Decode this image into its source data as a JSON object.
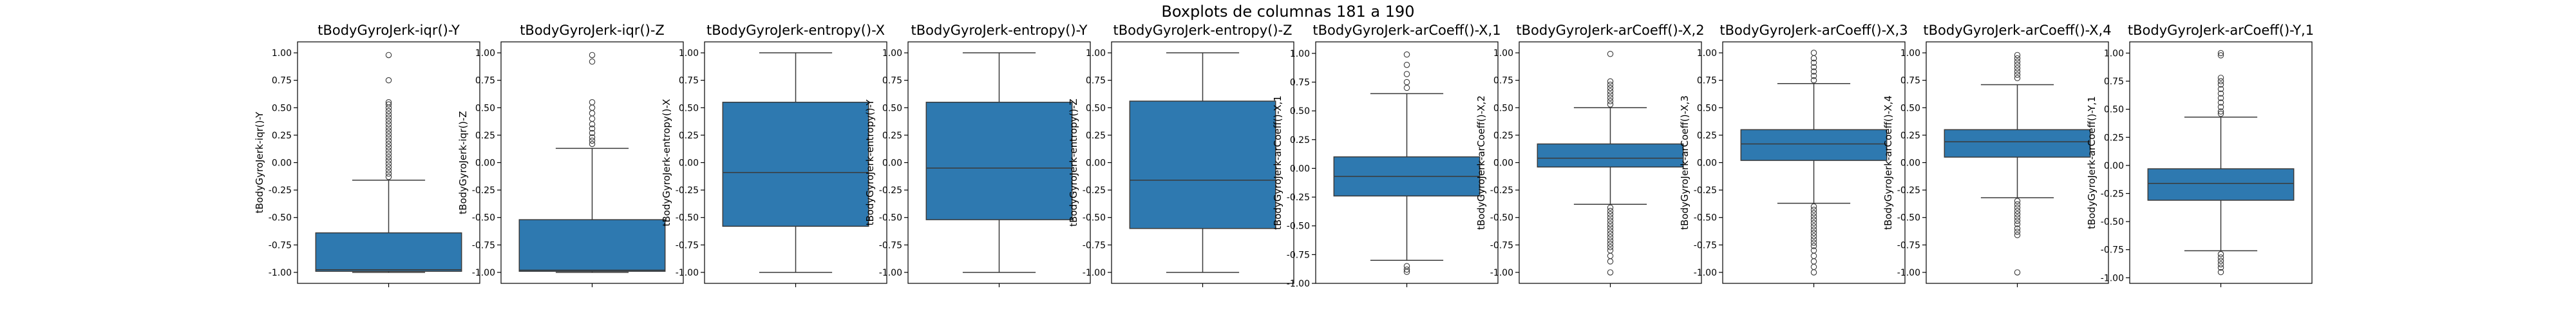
{
  "figure_title": "Boxplots de columnas 181 a 190",
  "colors": {
    "box": "#2e79b0",
    "line": "#3a3a3a",
    "frame": "#000000"
  },
  "chart_data": [
    {
      "type": "box",
      "title": "tBodyGyroJerk-iqr()-Y",
      "ylabel": "tBodyGyroJerk-iqr()-Y",
      "ylim": [
        -1.1,
        1.1
      ],
      "yticks": [
        "1.00",
        "0.75",
        "0.50",
        "0.25",
        "0.00",
        "-0.25",
        "-0.50",
        "-0.75",
        "-1.00"
      ],
      "stats": {
        "whislo": -1.0,
        "q1": -0.99,
        "median": -0.975,
        "q3": -0.64,
        "whishi": -0.16
      },
      "outliers": [
        0.98,
        0.75,
        0.55,
        0.53,
        0.5,
        0.47,
        0.44,
        0.41,
        0.38,
        0.35,
        0.32,
        0.29,
        0.26,
        0.23,
        0.2,
        0.17,
        0.14,
        0.11,
        0.08,
        0.05,
        0.02,
        -0.01,
        -0.04,
        -0.07,
        -0.1,
        -0.13
      ]
    },
    {
      "type": "box",
      "title": "tBodyGyroJerk-iqr()-Z",
      "ylabel": "tBodyGyroJerk-iqr()-Z",
      "ylim": [
        -1.1,
        1.1
      ],
      "yticks": [
        "1.00",
        "0.75",
        "0.50",
        "0.25",
        "0.00",
        "-0.25",
        "-0.50",
        "-0.75",
        "-1.00"
      ],
      "stats": {
        "whislo": -1.0,
        "q1": -0.99,
        "median": -0.98,
        "q3": -0.52,
        "whishi": 0.13
      },
      "outliers": [
        0.98,
        0.92,
        0.55,
        0.5,
        0.45,
        0.4,
        0.35,
        0.31,
        0.27,
        0.23,
        0.2,
        0.17
      ]
    },
    {
      "type": "box",
      "title": "tBodyGyroJerk-entropy()-X",
      "ylabel": "tBodyGyroJerk-entropy()-X",
      "ylim": [
        -1.1,
        1.1
      ],
      "yticks": [
        "1.00",
        "0.75",
        "0.50",
        "0.25",
        "0.00",
        "-0.25",
        "-0.50",
        "-0.75",
        "-1.00"
      ],
      "stats": {
        "whislo": -1.0,
        "q1": -0.58,
        "median": -0.09,
        "q3": 0.55,
        "whishi": 1.0
      },
      "outliers": []
    },
    {
      "type": "box",
      "title": "tBodyGyroJerk-entropy()-Y",
      "ylabel": "tBodyGyroJerk-entropy()-Y",
      "ylim": [
        -1.1,
        1.1
      ],
      "yticks": [
        "1.00",
        "0.75",
        "0.50",
        "0.25",
        "0.00",
        "-0.25",
        "-0.50",
        "-0.75",
        "-1.00"
      ],
      "stats": {
        "whislo": -1.0,
        "q1": -0.52,
        "median": -0.05,
        "q3": 0.55,
        "whishi": 1.0
      },
      "outliers": []
    },
    {
      "type": "box",
      "title": "tBodyGyroJerk-entropy()-Z",
      "ylabel": "tBodyGyroJerk-entropy()-Z",
      "ylim": [
        -1.1,
        1.1
      ],
      "yticks": [
        "1.00",
        "0.75",
        "0.50",
        "0.25",
        "0.00",
        "-0.25",
        "-0.50",
        "-0.75",
        "-1.00"
      ],
      "stats": {
        "whislo": -1.0,
        "q1": -0.6,
        "median": -0.16,
        "q3": 0.56,
        "whishi": 1.0
      },
      "outliers": []
    },
    {
      "type": "box",
      "title": "tBodyGyroJerk-arCoeff()-X,1",
      "ylabel": "tBodyGyroJerk-arCoeff()-X,1",
      "ylim": [
        -1.0,
        1.1
      ],
      "yticks": [
        "1.00",
        "0.75",
        "0.50",
        "0.25",
        "0.00",
        "-0.25",
        "-0.50",
        "-0.75",
        "-1.00"
      ],
      "stats": {
        "whislo": -0.8,
        "q1": -0.24,
        "median": -0.07,
        "q3": 0.1,
        "whishi": 0.65
      },
      "outliers": [
        0.99,
        0.9,
        0.82,
        0.75,
        0.7,
        -0.85,
        -0.88,
        -0.9
      ]
    },
    {
      "type": "box",
      "title": "tBodyGyroJerk-arCoeff()-X,2",
      "ylabel": "tBodyGyroJerk-arCoeff()-X,2",
      "ylim": [
        -1.1,
        1.1
      ],
      "yticks": [
        "1.00",
        "0.75",
        "0.50",
        "0.25",
        "0.00",
        "-0.25",
        "-0.50",
        "-0.75",
        "-1.00"
      ],
      "stats": {
        "whislo": -0.38,
        "q1": -0.04,
        "median": 0.04,
        "q3": 0.17,
        "whishi": 0.5
      },
      "outliers": [
        0.99,
        0.74,
        0.71,
        0.68,
        0.65,
        0.62,
        0.59,
        0.56,
        0.53,
        -0.41,
        -0.44,
        -0.47,
        -0.5,
        -0.53,
        -0.56,
        -0.59,
        -0.62,
        -0.65,
        -0.68,
        -0.71,
        -0.74,
        -0.77,
        -0.8,
        -0.85,
        -0.9,
        -1.0
      ]
    },
    {
      "type": "box",
      "title": "tBodyGyroJerk-arCoeff()-X,3",
      "ylabel": "tBodyGyroJerk-arCoeff()-X,3",
      "ylim": [
        -1.1,
        1.1
      ],
      "yticks": [
        "1.00",
        "0.75",
        "0.50",
        "0.25",
        "0.00",
        "-0.25",
        "-0.50",
        "-0.75",
        "-1.00"
      ],
      "stats": {
        "whislo": -0.37,
        "q1": 0.02,
        "median": 0.17,
        "q3": 0.3,
        "whishi": 0.72
      },
      "outliers": [
        1.0,
        0.95,
        0.91,
        0.87,
        0.83,
        0.79,
        0.75,
        -0.4,
        -0.43,
        -0.46,
        -0.49,
        -0.52,
        -0.55,
        -0.58,
        -0.61,
        -0.64,
        -0.67,
        -0.7,
        -0.73,
        -0.76,
        -0.8,
        -0.85,
        -0.9,
        -0.95,
        -1.0
      ]
    },
    {
      "type": "box",
      "title": "tBodyGyroJerk-arCoeff()-X,4",
      "ylabel": "tBodyGyroJerk-arCoeff()-X,4",
      "ylim": [
        -1.1,
        1.1
      ],
      "yticks": [
        "1.00",
        "0.75",
        "0.50",
        "0.25",
        "0.00",
        "-0.25",
        "-0.50",
        "-0.75",
        "-1.00"
      ],
      "stats": {
        "whislo": -0.32,
        "q1": 0.05,
        "median": 0.19,
        "q3": 0.3,
        "whishi": 0.71
      },
      "outliers": [
        0.98,
        0.95,
        0.92,
        0.89,
        0.86,
        0.83,
        0.8,
        0.77,
        -0.35,
        -0.38,
        -0.41,
        -0.44,
        -0.47,
        -0.5,
        -0.53,
        -0.56,
        -0.6,
        -0.63,
        -0.66,
        -1.0
      ]
    },
    {
      "type": "box",
      "title": "tBodyGyroJerk-arCoeff()-Y,1",
      "ylabel": "tBodyGyroJerk-arCoeff()-Y,1",
      "ylim": [
        -1.05,
        1.1
      ],
      "yticks": [
        "1.00",
        "0.75",
        "0.50",
        "0.25",
        "0.00",
        "-0.25",
        "-0.50",
        "-0.75",
        "-1.00"
      ],
      "stats": {
        "whislo": -0.76,
        "q1": -0.31,
        "median": -0.16,
        "q3": -0.03,
        "whishi": 0.43
      },
      "outliers": [
        1.0,
        0.98,
        0.78,
        0.75,
        0.72,
        0.68,
        0.64,
        0.6,
        0.56,
        0.52,
        0.48,
        0.46,
        -0.79,
        -0.82,
        -0.85,
        -0.88,
        -0.91,
        -0.95
      ]
    }
  ]
}
